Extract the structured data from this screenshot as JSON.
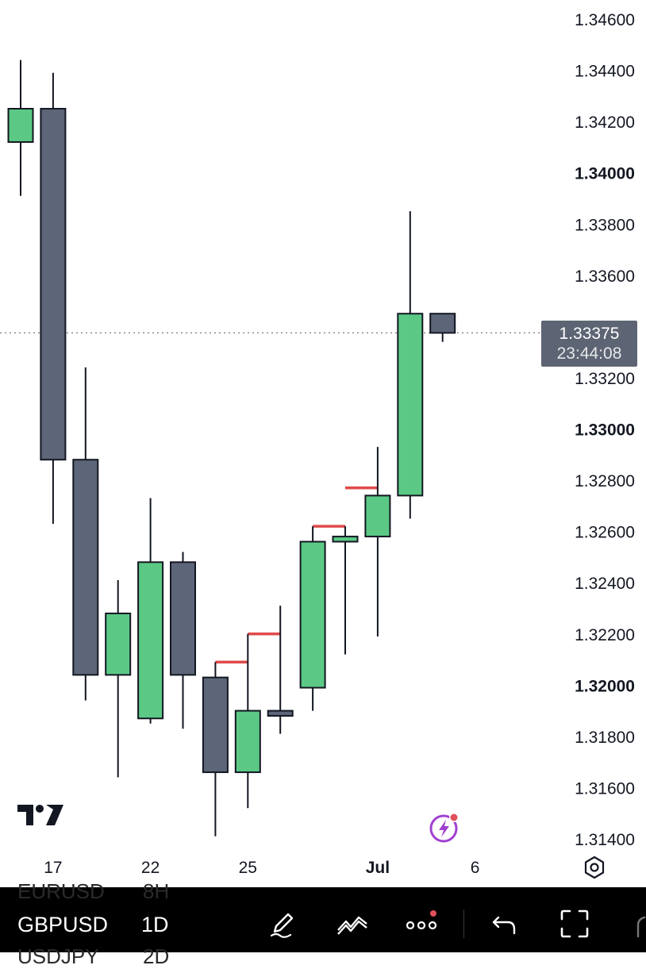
{
  "chart_data": {
    "type": "candlestick",
    "y_axis_position": "right",
    "y_ticks": [
      {
        "value": 1.346,
        "label": "1.34600",
        "bold": false
      },
      {
        "value": 1.344,
        "label": "1.34400",
        "bold": false
      },
      {
        "value": 1.342,
        "label": "1.34200",
        "bold": false
      },
      {
        "value": 1.34,
        "label": "1.34000",
        "bold": true
      },
      {
        "value": 1.338,
        "label": "1.33800",
        "bold": false
      },
      {
        "value": 1.336,
        "label": "1.33600",
        "bold": false
      },
      {
        "value": 1.332,
        "label": "1.33200",
        "bold": false
      },
      {
        "value": 1.33,
        "label": "1.33000",
        "bold": true
      },
      {
        "value": 1.328,
        "label": "1.32800",
        "bold": false
      },
      {
        "value": 1.326,
        "label": "1.32600",
        "bold": false
      },
      {
        "value": 1.324,
        "label": "1.32400",
        "bold": false
      },
      {
        "value": 1.322,
        "label": "1.32200",
        "bold": false
      },
      {
        "value": 1.32,
        "label": "1.32000",
        "bold": true
      },
      {
        "value": 1.318,
        "label": "1.31800",
        "bold": false
      },
      {
        "value": 1.316,
        "label": "1.31600",
        "bold": false
      },
      {
        "value": 1.314,
        "label": "1.31400",
        "bold": false
      }
    ],
    "x_ticks": [
      {
        "index": 1,
        "label": "17",
        "bold": false
      },
      {
        "index": 4,
        "label": "22",
        "bold": false
      },
      {
        "index": 7,
        "label": "25",
        "bold": false
      },
      {
        "index": 11,
        "label": "Jul",
        "bold": true
      },
      {
        "index": 14,
        "label": "6",
        "bold": false
      }
    ],
    "candles": [
      {
        "open": 1.3412,
        "high": 1.3444,
        "low": 1.3391,
        "close": 1.3425
      },
      {
        "open": 1.3425,
        "high": 1.3439,
        "low": 1.3263,
        "close": 1.3288
      },
      {
        "open": 1.3288,
        "high": 1.3324,
        "low": 1.3194,
        "close": 1.3204
      },
      {
        "open": 1.3204,
        "high": 1.3241,
        "low": 1.3164,
        "close": 1.3228
      },
      {
        "open": 1.3187,
        "high": 1.3273,
        "low": 1.3185,
        "close": 1.3248
      },
      {
        "open": 1.3248,
        "high": 1.3252,
        "low": 1.3183,
        "close": 1.3204
      },
      {
        "open": 1.3203,
        "high": 1.3209,
        "low": 1.3141,
        "close": 1.3166
      },
      {
        "open": 1.3166,
        "high": 1.322,
        "low": 1.3152,
        "close": 1.319
      },
      {
        "open": 1.319,
        "high": 1.3231,
        "low": 1.3181,
        "close": 1.3188
      },
      {
        "open": 1.3199,
        "high": 1.3262,
        "low": 1.319,
        "close": 1.3256
      },
      {
        "open": 1.3256,
        "high": 1.3262,
        "low": 1.3212,
        "close": 1.3258
      },
      {
        "open": 1.3258,
        "high": 1.3293,
        "low": 1.3219,
        "close": 1.3274
      },
      {
        "open": 1.3274,
        "high": 1.3385,
        "low": 1.3265,
        "close": 1.3345
      },
      {
        "open": 1.3345,
        "high": 1.3345,
        "low": 1.3334,
        "close": 1.33375
      }
    ],
    "colors": {
      "up": "#5bc985",
      "down": "#5d6578",
      "wick": "#131722",
      "level_line": "#e04a4a",
      "price_line": "#6e6e6e"
    },
    "resistance_levels": [
      {
        "from_index": 6,
        "to_index": 7,
        "value": 1.3209
      },
      {
        "from_index": 7,
        "to_index": 8,
        "value": 1.322
      },
      {
        "from_index": 9,
        "to_index": 10,
        "value": 1.3262
      },
      {
        "from_index": 10,
        "to_index": 11,
        "value": 1.3277
      }
    ],
    "current_price": {
      "value": 1.33375,
      "label": "1.33375",
      "countdown": "23:44:08"
    }
  },
  "toolbar": {
    "symbol": "GBPUSD",
    "interval": "1D",
    "ghost_symbol_above": "EURUSD",
    "ghost_interval_above": "8H",
    "ghost_symbol_below": "USDJPY",
    "ghost_interval_below": "2D",
    "icons": [
      "pen-icon",
      "indicators-icon",
      "more-icon",
      "undo-icon",
      "fullscreen-icon"
    ]
  },
  "badges": {
    "alerts_dot_color": "#e0505a",
    "flash_icon_color": "#a040d0"
  }
}
